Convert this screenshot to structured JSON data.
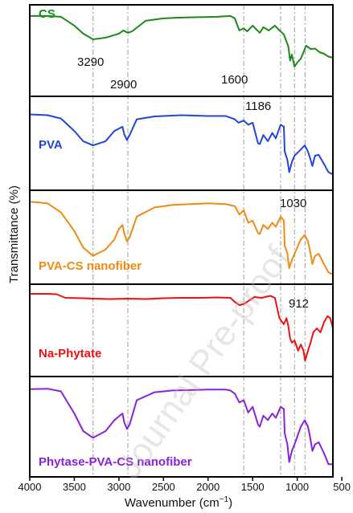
{
  "chart_data": {
    "type": "line",
    "xlabel": "Wavenumber (cm",
    "xlabel_sup": "−1",
    "xlabel_end": ")",
    "ylabel": "Transmittance (%)",
    "xlim": [
      4000,
      600
    ],
    "x_reversed": true,
    "xticks": [
      "4000",
      "3500",
      "3000",
      "2500",
      "2000",
      "1500",
      "1000",
      "500"
    ],
    "grid": false,
    "guide_lines": [
      3290,
      2900,
      1600,
      1186,
      1030,
      912
    ],
    "peak_labels": [
      "3290",
      "2900",
      "1600",
      "1186",
      "1030",
      "912"
    ],
    "watermark": "Journal Pre-proof",
    "series": [
      {
        "name": "CS",
        "color": "#1a8a1a",
        "points": [
          [
            4000,
            0.86
          ],
          [
            3800,
            0.86
          ],
          [
            3650,
            0.84
          ],
          [
            3500,
            0.62
          ],
          [
            3400,
            0.42
          ],
          [
            3290,
            0.28
          ],
          [
            3150,
            0.32
          ],
          [
            3000,
            0.42
          ],
          [
            2950,
            0.5
          ],
          [
            2900,
            0.44
          ],
          [
            2850,
            0.48
          ],
          [
            2700,
            0.74
          ],
          [
            2500,
            0.8
          ],
          [
            2300,
            0.82
          ],
          [
            2100,
            0.83
          ],
          [
            1900,
            0.84
          ],
          [
            1750,
            0.86
          ],
          [
            1700,
            0.8
          ],
          [
            1650,
            0.5
          ],
          [
            1600,
            0.55
          ],
          [
            1560,
            0.48
          ],
          [
            1500,
            0.62
          ],
          [
            1420,
            0.44
          ],
          [
            1380,
            0.58
          ],
          [
            1320,
            0.5
          ],
          [
            1250,
            0.62
          ],
          [
            1200,
            0.5
          ],
          [
            1150,
            0.4
          ],
          [
            1100,
            0.1
          ],
          [
            1080,
            -0.25
          ],
          [
            1060,
            -0.1
          ],
          [
            1030,
            -0.4
          ],
          [
            1000,
            -0.3
          ],
          [
            960,
            -0.2
          ],
          [
            900,
            0.12
          ],
          [
            850,
            0.04
          ],
          [
            800,
            0.05
          ],
          [
            750,
            -0.04
          ],
          [
            700,
            -0.08
          ],
          [
            650,
            -0.15
          ],
          [
            600,
            -0.18
          ]
        ]
      },
      {
        "name": "PVA",
        "color": "#2244dd",
        "points": [
          [
            4000,
            0.7
          ],
          [
            3800,
            0.68
          ],
          [
            3650,
            0.6
          ],
          [
            3500,
            0.3
          ],
          [
            3400,
            0.05
          ],
          [
            3290,
            -0.05
          ],
          [
            3150,
            0.05
          ],
          [
            3050,
            0.3
          ],
          [
            2960,
            0.4
          ],
          [
            2940,
            0.22
          ],
          [
            2910,
            0.08
          ],
          [
            2880,
            0.2
          ],
          [
            2800,
            0.58
          ],
          [
            2600,
            0.65
          ],
          [
            2300,
            0.68
          ],
          [
            2000,
            0.66
          ],
          [
            1800,
            0.66
          ],
          [
            1750,
            0.62
          ],
          [
            1700,
            0.58
          ],
          [
            1660,
            0.5
          ],
          [
            1600,
            0.55
          ],
          [
            1550,
            0.45
          ],
          [
            1500,
            0.5
          ],
          [
            1440,
            0.0
          ],
          [
            1420,
            -0.02
          ],
          [
            1380,
            0.2
          ],
          [
            1330,
            0.05
          ],
          [
            1280,
            0.25
          ],
          [
            1240,
            0.12
          ],
          [
            1186,
            0.45
          ],
          [
            1150,
            0.4
          ],
          [
            1140,
            -0.2
          ],
          [
            1110,
            -0.4
          ],
          [
            1090,
            -0.7
          ],
          [
            1060,
            -0.45
          ],
          [
            1030,
            -0.3
          ],
          [
            960,
            -0.15
          ],
          [
            916,
            -0.05
          ],
          [
            880,
            -0.2
          ],
          [
            850,
            -0.4
          ],
          [
            830,
            -0.55
          ],
          [
            800,
            -0.3
          ],
          [
            760,
            -0.28
          ],
          [
            700,
            -0.5
          ],
          [
            650,
            -0.7
          ],
          [
            600,
            -0.75
          ]
        ]
      },
      {
        "name": "PVA-CS nanofiber",
        "color": "#f08a10",
        "points": [
          [
            4000,
            0.86
          ],
          [
            3800,
            0.82
          ],
          [
            3650,
            0.6
          ],
          [
            3500,
            0.15
          ],
          [
            3400,
            -0.25
          ],
          [
            3290,
            -0.45
          ],
          [
            3150,
            -0.3
          ],
          [
            3050,
            -0.05
          ],
          [
            3000,
            0.2
          ],
          [
            2960,
            0.3
          ],
          [
            2940,
            0.1
          ],
          [
            2910,
            -0.1
          ],
          [
            2880,
            0.0
          ],
          [
            2800,
            0.5
          ],
          [
            2600,
            0.72
          ],
          [
            2400,
            0.78
          ],
          [
            2200,
            0.8
          ],
          [
            2000,
            0.82
          ],
          [
            1800,
            0.8
          ],
          [
            1700,
            0.75
          ],
          [
            1650,
            0.55
          ],
          [
            1600,
            0.65
          ],
          [
            1550,
            0.35
          ],
          [
            1500,
            0.4
          ],
          [
            1440,
            0.1
          ],
          [
            1420,
            0.08
          ],
          [
            1380,
            0.3
          ],
          [
            1330,
            0.2
          ],
          [
            1280,
            0.35
          ],
          [
            1240,
            0.25
          ],
          [
            1186,
            0.5
          ],
          [
            1150,
            0.4
          ],
          [
            1140,
            -0.2
          ],
          [
            1110,
            -0.4
          ],
          [
            1090,
            -0.75
          ],
          [
            1060,
            -0.55
          ],
          [
            1030,
            -0.4
          ],
          [
            960,
            -0.05
          ],
          [
            916,
            0.05
          ],
          [
            880,
            -0.1
          ],
          [
            850,
            -0.4
          ],
          [
            830,
            -0.65
          ],
          [
            800,
            -0.45
          ],
          [
            760,
            -0.4
          ],
          [
            700,
            -0.65
          ],
          [
            650,
            -0.85
          ],
          [
            600,
            -0.9
          ]
        ]
      },
      {
        "name": "Na-Phytate",
        "color": "#ee1111",
        "points": [
          [
            4000,
            0.9
          ],
          [
            3800,
            0.9
          ],
          [
            3700,
            0.89
          ],
          [
            3600,
            0.8
          ],
          [
            3400,
            0.79
          ],
          [
            3290,
            0.78
          ],
          [
            3100,
            0.77
          ],
          [
            2900,
            0.78
          ],
          [
            2700,
            0.77
          ],
          [
            2500,
            0.79
          ],
          [
            2300,
            0.8
          ],
          [
            2100,
            0.8
          ],
          [
            1900,
            0.81
          ],
          [
            1750,
            0.8
          ],
          [
            1700,
            0.7
          ],
          [
            1650,
            0.62
          ],
          [
            1600,
            0.65
          ],
          [
            1550,
            0.72
          ],
          [
            1480,
            0.82
          ],
          [
            1400,
            0.8
          ],
          [
            1300,
            0.85
          ],
          [
            1250,
            0.8
          ],
          [
            1200,
            0.3
          ],
          [
            1150,
            0.15
          ],
          [
            1120,
            0.3
          ],
          [
            1100,
            0.1
          ],
          [
            1080,
            -0.2
          ],
          [
            1060,
            -0.3
          ],
          [
            1030,
            -0.25
          ],
          [
            990,
            -0.5
          ],
          [
            960,
            -0.35
          ],
          [
            930,
            -0.5
          ],
          [
            912,
            -0.75
          ],
          [
            880,
            -0.5
          ],
          [
            850,
            -0.3
          ],
          [
            820,
            -0.05
          ],
          [
            780,
            0.05
          ],
          [
            740,
            -0.05
          ],
          [
            700,
            0.2
          ],
          [
            660,
            0.35
          ],
          [
            630,
            0.3
          ],
          [
            600,
            0.05
          ]
        ]
      },
      {
        "name": "Phytase-PVA-CS nanofiber",
        "color": "#8822dd",
        "points": [
          [
            4000,
            0.85
          ],
          [
            3800,
            0.86
          ],
          [
            3650,
            0.8
          ],
          [
            3500,
            0.3
          ],
          [
            3400,
            -0.1
          ],
          [
            3290,
            -0.25
          ],
          [
            3150,
            -0.1
          ],
          [
            3050,
            0.15
          ],
          [
            2960,
            0.3
          ],
          [
            2940,
            0.1
          ],
          [
            2910,
            -0.05
          ],
          [
            2880,
            0.05
          ],
          [
            2800,
            0.6
          ],
          [
            2600,
            0.78
          ],
          [
            2400,
            0.82
          ],
          [
            2200,
            0.83
          ],
          [
            2000,
            0.84
          ],
          [
            1800,
            0.84
          ],
          [
            1750,
            0.82
          ],
          [
            1700,
            0.75
          ],
          [
            1650,
            0.55
          ],
          [
            1600,
            0.6
          ],
          [
            1550,
            0.32
          ],
          [
            1500,
            0.45
          ],
          [
            1440,
            0.05
          ],
          [
            1420,
            0.0
          ],
          [
            1380,
            0.25
          ],
          [
            1330,
            0.15
          ],
          [
            1280,
            0.3
          ],
          [
            1240,
            0.2
          ],
          [
            1186,
            0.45
          ],
          [
            1150,
            0.4
          ],
          [
            1140,
            -0.15
          ],
          [
            1110,
            -0.4
          ],
          [
            1090,
            -0.8
          ],
          [
            1060,
            -0.55
          ],
          [
            1030,
            -0.4
          ],
          [
            960,
            0.0
          ],
          [
            916,
            0.15
          ],
          [
            880,
            0.0
          ],
          [
            850,
            -0.3
          ],
          [
            830,
            -0.55
          ],
          [
            800,
            -0.4
          ],
          [
            760,
            -0.35
          ],
          [
            700,
            -0.6
          ],
          [
            650,
            -0.85
          ],
          [
            600,
            -0.85
          ]
        ]
      }
    ]
  }
}
